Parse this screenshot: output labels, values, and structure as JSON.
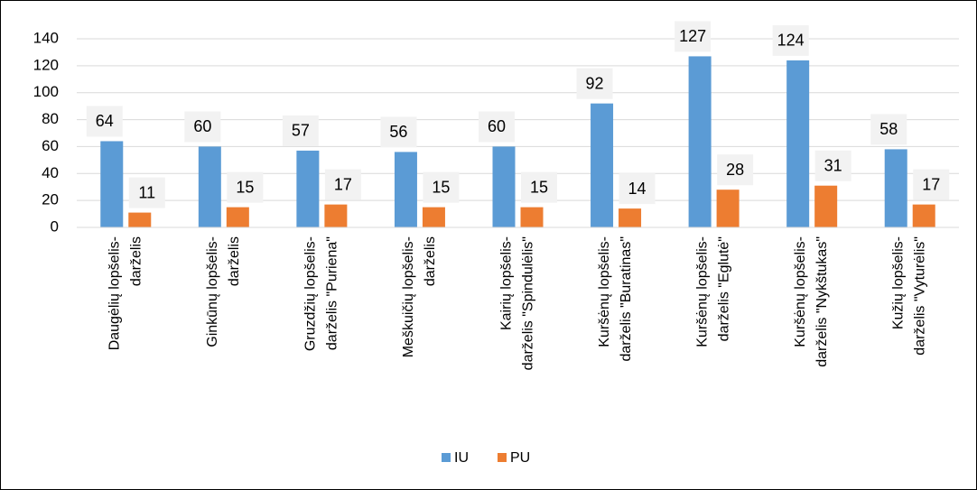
{
  "chart_data": {
    "type": "bar",
    "categories": [
      "Daugėlių lopšelis-darželis",
      "Ginkūnų lopšelis-darželis",
      "Gruzdžių lopšelis-darželis \"Puriena\"",
      "Meškuičių lopšelis-darželis",
      "Kairių lopšelis-darželis \"Spindulėlis\"",
      "Kuršėnų lopšelis-darželis \"Buratinas\"",
      "Kuršėnų lopšelis-darželis \"Eglutė\"",
      "Kuršėnų lopšelis-darželis \"Nykštukas\"",
      "Kužių lopšelis-darželis \"Vyturėlis\""
    ],
    "series": [
      {
        "name": "IU",
        "color": "#5b9bd5",
        "values": [
          64,
          60,
          57,
          56,
          60,
          92,
          127,
          124,
          58
        ]
      },
      {
        "name": "PU",
        "color": "#ed7d31",
        "values": [
          11,
          15,
          17,
          15,
          15,
          14,
          28,
          31,
          17
        ]
      }
    ],
    "ylim": [
      0,
      140
    ],
    "yticks": [
      0,
      20,
      40,
      60,
      80,
      100,
      120,
      140
    ],
    "grid": true,
    "legend": "bottom"
  }
}
